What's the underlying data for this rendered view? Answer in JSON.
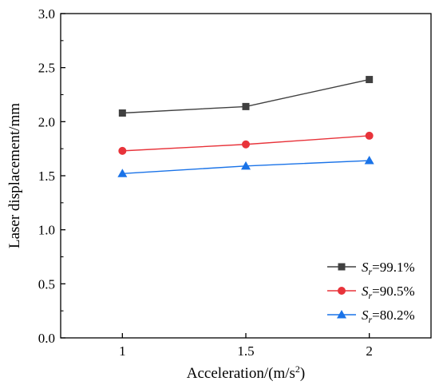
{
  "chart_data": {
    "type": "line",
    "x": [
      1,
      1.5,
      2
    ],
    "xticks": [
      "1",
      "1.5",
      "2"
    ],
    "yticks": [
      "0.0",
      "0.5",
      "1.0",
      "1.5",
      "2.0",
      "2.5",
      "3.0"
    ],
    "xlim": [
      0.75,
      2.25
    ],
    "ylim": [
      0,
      3.0
    ],
    "xlabel": "Acceleration/(m/s²)",
    "ylabel": "Laser displacement/mm",
    "legend_position": "bottom-right",
    "grid": false,
    "series": [
      {
        "name": "Sr=99.1%",
        "name_sub": "r",
        "name_value": "=99.1%",
        "color": "#404040",
        "marker": "square",
        "values": [
          2.08,
          2.14,
          2.39
        ]
      },
      {
        "name": "Sr=90.5%",
        "name_sub": "r",
        "name_value": "=90.5%",
        "color": "#e8333a",
        "marker": "circle",
        "values": [
          1.73,
          1.79,
          1.87
        ]
      },
      {
        "name": "Sr=80.2%",
        "name_sub": "r",
        "name_value": "=80.2%",
        "color": "#1a73e8",
        "marker": "triangle",
        "values": [
          1.52,
          1.59,
          1.64
        ]
      }
    ]
  }
}
